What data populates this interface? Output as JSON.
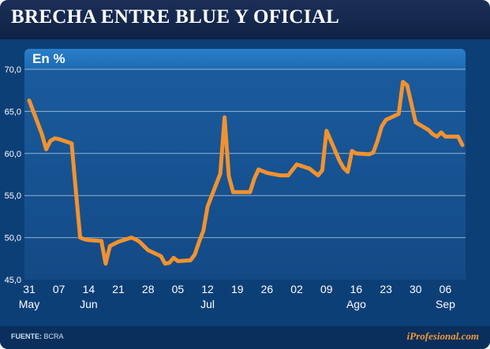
{
  "header": {
    "title": "BRECHA ENTRE BLUE Y OFICIAL",
    "subtitle": "En %"
  },
  "footer": {
    "source_label": "FUENTE:",
    "source_value": "BCRA",
    "brand": "iProfesional.com"
  },
  "colors": {
    "line": "#f2922f",
    "background": "#0d3f77",
    "grid": "#ffffff"
  },
  "chart_data": {
    "type": "line",
    "title": "BRECHA ENTRE BLUE Y OFICIAL",
    "subtitle": "En %",
    "ylim": [
      45,
      70
    ],
    "y_ticks": [
      "45,0",
      "50,0",
      "55,0",
      "60,0",
      "65,0",
      "70,0"
    ],
    "y_tick_values": [
      45,
      50,
      55,
      60,
      65,
      70
    ],
    "x_day_labels": [
      "31",
      "07",
      "14",
      "21",
      "28",
      "05",
      "12",
      "19",
      "26",
      "02",
      "09",
      "16",
      "23",
      "30",
      "06"
    ],
    "x_month_labels": [
      {
        "label": "May",
        "at": "31"
      },
      {
        "label": "Jun",
        "at": "14"
      },
      {
        "label": "Jul",
        "at": "12"
      },
      {
        "label": "Ago",
        "at": "16"
      },
      {
        "label": "Sep",
        "at": "06"
      }
    ],
    "grid": true,
    "series": [
      {
        "x": [
          "2013-05-31",
          "2013-06-03",
          "2013-06-04",
          "2013-06-05",
          "2013-06-06",
          "2013-06-07",
          "2013-06-10",
          "2013-06-11",
          "2013-06-12",
          "2013-06-13",
          "2013-06-14",
          "2013-06-17",
          "2013-06-18",
          "2013-06-19",
          "2013-06-21",
          "2013-06-24",
          "2013-06-25",
          "2013-06-26",
          "2013-06-27",
          "2013-06-28",
          "2013-07-01",
          "2013-07-02",
          "2013-07-03",
          "2013-07-04",
          "2013-07-05",
          "2013-07-08",
          "2013-07-09",
          "2013-07-10",
          "2013-07-11",
          "2013-07-12",
          "2013-07-15",
          "2013-07-16",
          "2013-07-17",
          "2013-07-18",
          "2013-07-19",
          "2013-07-22",
          "2013-07-23",
          "2013-07-24",
          "2013-07-26",
          "2013-07-29",
          "2013-07-31",
          "2013-08-02",
          "2013-08-05",
          "2013-08-06",
          "2013-08-07",
          "2013-08-08",
          "2013-08-09",
          "2013-08-12",
          "2013-08-13",
          "2013-08-14",
          "2013-08-15",
          "2013-08-16",
          "2013-08-19",
          "2013-08-20",
          "2013-08-21",
          "2013-08-22",
          "2013-08-23",
          "2013-08-26",
          "2013-08-27",
          "2013-08-28",
          "2013-08-30",
          "2013-09-02",
          "2013-09-03",
          "2013-09-04",
          "2013-09-05",
          "2013-09-06",
          "2013-09-09",
          "2013-09-10"
        ],
        "values": [
          66.3,
          62.3,
          60.5,
          61.5,
          61.8,
          61.7,
          61.2,
          55.5,
          50.0,
          49.8,
          49.7,
          49.6,
          46.9,
          49.0,
          49.5,
          50.0,
          49.8,
          49.5,
          49.0,
          48.5,
          47.8,
          46.9,
          47.0,
          47.6,
          47.2,
          47.3,
          48.0,
          49.5,
          50.8,
          53.7,
          57.6,
          64.3,
          57.3,
          55.4,
          55.4,
          55.4,
          57.0,
          58.1,
          57.7,
          57.4,
          57.4,
          58.7,
          58.2,
          57.8,
          57.4,
          58.0,
          62.7,
          59.2,
          58.3,
          57.8,
          60.3,
          60.0,
          59.9,
          60.1,
          61.5,
          63.2,
          64.0,
          64.7,
          68.5,
          68.1,
          63.7,
          62.8,
          62.3,
          62.0,
          62.5,
          62.0,
          62.0,
          61.0
        ]
      }
    ]
  }
}
